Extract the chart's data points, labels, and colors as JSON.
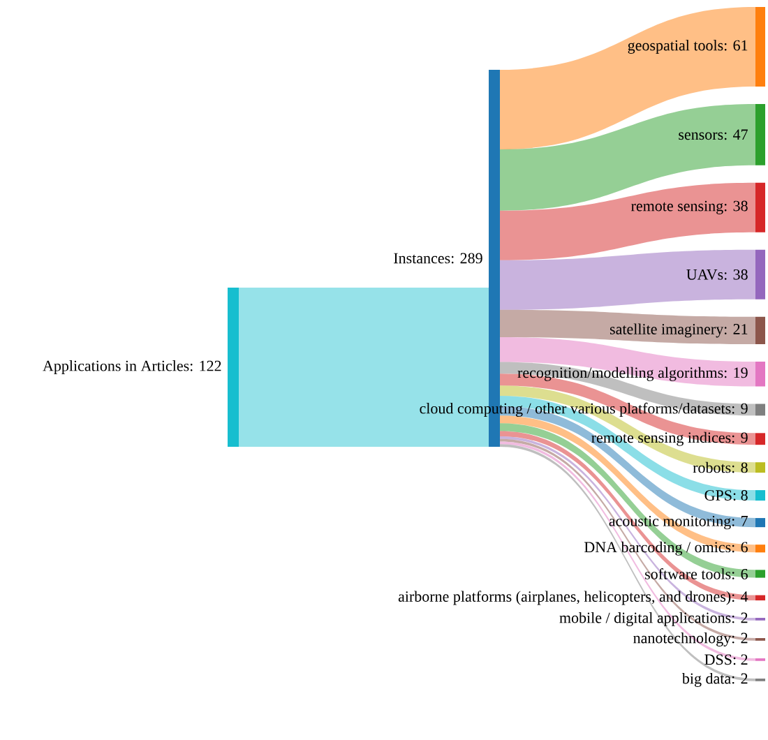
{
  "chart_data": {
    "type": "other",
    "categories": [
      "Applications in Articles",
      "Instances",
      "geospatial tools",
      "sensors",
      "remote sensing",
      "UAVs",
      "satellite imaginery",
      "recognition/modelling algorithms",
      "cloud computing / other various platforms/datasets",
      "remote sensing indices",
      "robots",
      "GPS",
      "acoustic monitoring",
      "DNA barcoding / omics",
      "software tools",
      "airborne platforms (airplanes, helicopters, and drones)",
      "mobile / digital applications",
      "nanotechnology",
      "DSS",
      "big data"
    ],
    "values": [
      122,
      289,
      61,
      47,
      38,
      38,
      21,
      19,
      9,
      9,
      8,
      8,
      7,
      6,
      6,
      4,
      2,
      2,
      2,
      2
    ],
    "value_labels": [
      ": 122",
      ": 289",
      ": 61",
      ": 47",
      ": 38",
      ": 38",
      ": 21",
      ": 19",
      ": 9",
      ": 9",
      ": 8",
      ": 8",
      ": 7",
      ": 6",
      ": 6",
      ": 4",
      ": 2",
      ": 2",
      ": 2",
      ": 2"
    ],
    "colors": [
      "#17becf",
      "#1f77b4",
      "#ff7f0e",
      "#2ca02c",
      "#d62728",
      "#9467bd",
      "#8c564b",
      "#e377c2",
      "#7f7f7f",
      "#d62728",
      "#bcbd22",
      "#17becf",
      "#1f77b4",
      "#ff7f0e",
      "#2ca02c",
      "#d62728",
      "#9467bd",
      "#8c564b",
      "#e377c2",
      "#7f7f7f"
    ]
  }
}
